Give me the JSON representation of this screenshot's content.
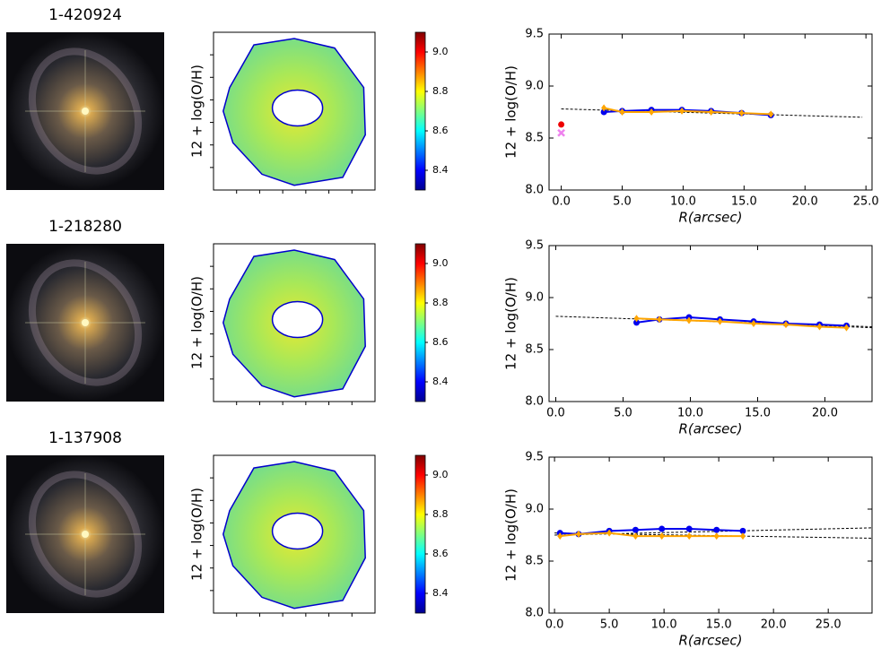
{
  "chart_data": [
    {
      "type": "image",
      "title": "1-420924"
    },
    {
      "type": "map",
      "ylabel": "12 + log(O/H)",
      "clim": [
        8.3,
        9.1
      ],
      "cticks": [
        8.4,
        8.6,
        8.8,
        {
          "value": 9,
          "label": "9.0"
        }
      ]
    },
    {
      "type": "line",
      "ylabel": "12 + log(O/H)",
      "xlabel": "R(arcsec)",
      "xlim": [
        -1,
        25.5
      ],
      "ylim": [
        8,
        9.5
      ],
      "xticks": [
        {
          "value": 0,
          "label": "0.0"
        },
        {
          "value": 5,
          "label": "5.0"
        },
        {
          "value": 10,
          "label": "10.0"
        },
        {
          "value": 15,
          "label": "15.0"
        },
        {
          "value": 20,
          "label": "20.0"
        },
        {
          "value": 25,
          "label": "25.0"
        }
      ],
      "yticks": [
        {
          "value": 8,
          "label": "8.0"
        },
        8.5,
        {
          "value": 9,
          "label": "9.0"
        },
        9.5
      ],
      "series": [
        {
          "color": "#000000",
          "style": "dashed",
          "x": [
            0,
            24.7
          ],
          "values": [
            8.78,
            8.7
          ]
        },
        {
          "color": "#0000ee",
          "style": "line",
          "marker": "circle",
          "x": [
            3.5,
            5,
            7.4,
            9.9,
            12.3,
            14.8,
            17.2
          ],
          "values": [
            8.75,
            8.76,
            8.77,
            8.77,
            8.76,
            8.74,
            8.72
          ]
        },
        {
          "color": "#ffa500",
          "style": "line",
          "marker": "diamond",
          "x": [
            3.5,
            5,
            7.4,
            9.9,
            12.3,
            14.8,
            17.2
          ],
          "values": [
            8.79,
            8.75,
            8.75,
            8.76,
            8.75,
            8.74,
            8.73
          ]
        },
        {
          "color": "#ee0000",
          "style": "point",
          "marker": "circle",
          "x": [
            0
          ],
          "values": [
            8.63
          ]
        },
        {
          "color": "#ee82ee",
          "style": "point",
          "marker": "x",
          "x": [
            0
          ],
          "values": [
            8.55
          ]
        }
      ]
    },
    {
      "type": "image",
      "title": "1-218280"
    },
    {
      "type": "map",
      "ylabel": "12 + log(O/H)",
      "clim": [
        8.3,
        9.1
      ],
      "cticks": [
        8.4,
        8.6,
        8.8,
        {
          "value": 9,
          "label": "9.0"
        }
      ]
    },
    {
      "type": "line",
      "ylabel": "12 + log(O/H)",
      "xlabel": "R(arcsec)",
      "xlim": [
        -0.5,
        23.5
      ],
      "ylim": [
        8,
        9.5
      ],
      "xticks": [
        {
          "value": 0,
          "label": "0.0"
        },
        {
          "value": 5,
          "label": "5.0"
        },
        {
          "value": 10,
          "label": "10.0"
        },
        {
          "value": 15,
          "label": "15.0"
        },
        {
          "value": 20,
          "label": "20.0"
        }
      ],
      "yticks": [
        {
          "value": 8,
          "label": "8.0"
        },
        8.5,
        {
          "value": 9,
          "label": "9.0"
        },
        9.5
      ],
      "series": [
        {
          "color": "#000000",
          "style": "dashed",
          "x": [
            0,
            23.5
          ],
          "values": [
            8.82,
            8.72
          ]
        },
        {
          "color": "#000000",
          "style": "dashed",
          "x": [
            6,
            23.5
          ],
          "values": [
            8.8,
            8.71
          ]
        },
        {
          "color": "#0000ee",
          "style": "line",
          "marker": "circle",
          "x": [
            6,
            7.7,
            9.9,
            12.2,
            14.7,
            17.1,
            19.6,
            21.6
          ],
          "values": [
            8.76,
            8.79,
            8.81,
            8.79,
            8.77,
            8.75,
            8.74,
            8.73
          ]
        },
        {
          "color": "#ffa500",
          "style": "line",
          "marker": "diamond",
          "x": [
            6,
            7.7,
            9.9,
            12.2,
            14.7,
            17.1,
            19.6,
            21.6
          ],
          "values": [
            8.8,
            8.79,
            8.78,
            8.77,
            8.75,
            8.74,
            8.72,
            8.71
          ]
        }
      ]
    },
    {
      "type": "image",
      "title": "1-137908"
    },
    {
      "type": "map",
      "ylabel": "12 + log(O/H)",
      "clim": [
        8.3,
        9.1
      ],
      "cticks": [
        8.4,
        8.6,
        8.8,
        {
          "value": 9,
          "label": "9.0"
        }
      ]
    },
    {
      "type": "line",
      "ylabel": "12 + log(O/H)",
      "xlabel": "R(arcsec)",
      "xlim": [
        -0.5,
        29
      ],
      "ylim": [
        8,
        9.5
      ],
      "xticks": [
        {
          "value": 0,
          "label": "0.0"
        },
        {
          "value": 5,
          "label": "5.0"
        },
        {
          "value": 10,
          "label": "10.0"
        },
        {
          "value": 15,
          "label": "15.0"
        },
        {
          "value": 20,
          "label": "20.0"
        },
        {
          "value": 25,
          "label": "25.0"
        }
      ],
      "yticks": [
        {
          "value": 8,
          "label": "8.0"
        },
        8.5,
        {
          "value": 9,
          "label": "9.0"
        },
        9.5
      ],
      "series": [
        {
          "color": "#000000",
          "style": "dashed",
          "x": [
            0,
            29
          ],
          "values": [
            8.75,
            8.82
          ]
        },
        {
          "color": "#000000",
          "style": "dashed",
          "x": [
            0,
            29
          ],
          "values": [
            8.77,
            8.72
          ]
        },
        {
          "color": "#0000ee",
          "style": "line",
          "marker": "circle",
          "x": [
            0.5,
            2.2,
            5,
            7.4,
            9.8,
            12.3,
            14.8,
            17.2
          ],
          "values": [
            8.77,
            8.76,
            8.79,
            8.8,
            8.81,
            8.81,
            8.8,
            8.79
          ]
        },
        {
          "color": "#ffa500",
          "style": "line",
          "marker": "diamond",
          "x": [
            0.5,
            2.2,
            5,
            7.4,
            9.8,
            12.3,
            14.8,
            17.2
          ],
          "values": [
            8.74,
            8.76,
            8.77,
            8.74,
            8.74,
            8.74,
            8.74,
            8.74
          ]
        }
      ]
    }
  ]
}
